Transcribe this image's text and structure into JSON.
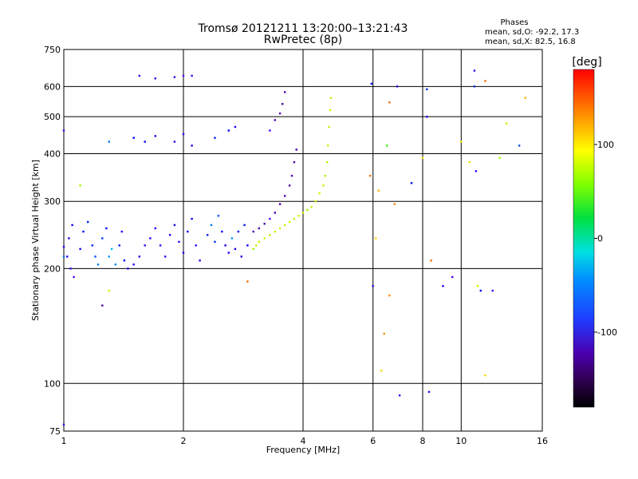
{
  "header": {
    "title_line1": "Tromsø 20121211 13:20:00–13:21:43",
    "title_line2": "RwPretec (8p)",
    "stats_title": "Phases",
    "stats_O": "mean, sd,O: -92.2, 17.3",
    "stats_X": "mean, sd,X:  82.5, 16.8"
  },
  "colorbar": {
    "unit": "[deg]",
    "min": -180,
    "max": 180,
    "ticks": [
      {
        "value": 100,
        "label": "100"
      },
      {
        "value": 0,
        "label": "0"
      },
      {
        "value": -100,
        "label": "-100"
      }
    ]
  },
  "chart_data": {
    "type": "scatter",
    "xlabel": "Frequency [MHz]",
    "ylabel": "Stationary phase Virtual Height [km]",
    "xscale": "log",
    "yscale": "log",
    "xlim": [
      1,
      16
    ],
    "ylim": [
      75,
      750
    ],
    "grid": true,
    "xticks": [
      {
        "value": 1,
        "label": "1"
      },
      {
        "value": 2,
        "label": "2"
      },
      {
        "value": 4,
        "label": "4"
      },
      {
        "value": 6,
        "label": "6"
      },
      {
        "value": 8,
        "label": "8"
      },
      {
        "value": 10,
        "label": "10"
      },
      {
        "value": 16,
        "label": "16"
      }
    ],
    "yticks": [
      {
        "value": 75,
        "label": "75"
      },
      {
        "value": 100,
        "label": "100"
      },
      {
        "value": 200,
        "label": "200"
      },
      {
        "value": 300,
        "label": "300"
      },
      {
        "value": 400,
        "label": "400"
      },
      {
        "value": 500,
        "label": "500"
      },
      {
        "value": 600,
        "label": "600"
      },
      {
        "value": 750,
        "label": "750"
      }
    ],
    "points": [
      [
        1.0,
        228,
        -110
      ],
      [
        1.02,
        215,
        -100
      ],
      [
        1.03,
        240,
        -105
      ],
      [
        1.05,
        260,
        -95
      ],
      [
        1.04,
        200,
        -110
      ],
      [
        1.06,
        190,
        -115
      ],
      [
        1.0,
        460,
        -115
      ],
      [
        1.0,
        78,
        -110
      ],
      [
        1.1,
        225,
        -95
      ],
      [
        1.12,
        250,
        -90
      ],
      [
        1.15,
        265,
        -85
      ],
      [
        1.18,
        230,
        -80
      ],
      [
        1.2,
        215,
        -70
      ],
      [
        1.22,
        205,
        -60
      ],
      [
        1.25,
        240,
        -75
      ],
      [
        1.28,
        255,
        -90
      ],
      [
        1.3,
        215,
        -50
      ],
      [
        1.32,
        225,
        -40
      ],
      [
        1.35,
        205,
        -55
      ],
      [
        1.38,
        230,
        -85
      ],
      [
        1.4,
        250,
        -100
      ],
      [
        1.42,
        210,
        -95
      ],
      [
        1.45,
        200,
        -110
      ],
      [
        1.5,
        205,
        -105
      ],
      [
        1.55,
        215,
        -100
      ],
      [
        1.6,
        230,
        -110
      ],
      [
        1.65,
        240,
        -105
      ],
      [
        1.7,
        255,
        -100
      ],
      [
        1.75,
        230,
        -112
      ],
      [
        1.8,
        215,
        -108
      ],
      [
        1.85,
        245,
        -102
      ],
      [
        1.9,
        260,
        -98
      ],
      [
        1.95,
        235,
        -106
      ],
      [
        2.0,
        220,
        -100
      ],
      [
        2.05,
        250,
        -95
      ],
      [
        2.1,
        270,
        -90
      ],
      [
        2.15,
        230,
        -104
      ],
      [
        2.2,
        210,
        -108
      ],
      [
        2.3,
        245,
        -85
      ],
      [
        2.35,
        260,
        -60
      ],
      [
        2.4,
        235,
        -80
      ],
      [
        2.45,
        275,
        -70
      ],
      [
        2.5,
        250,
        -95
      ],
      [
        2.55,
        230,
        -100
      ],
      [
        2.6,
        220,
        -105
      ],
      [
        2.65,
        240,
        -50
      ],
      [
        2.7,
        225,
        -98
      ],
      [
        2.75,
        250,
        -92
      ],
      [
        2.8,
        215,
        -100
      ],
      [
        2.85,
        260,
        -88
      ],
      [
        2.9,
        230,
        -95
      ],
      [
        3.0,
        225,
        90
      ],
      [
        3.05,
        230,
        95
      ],
      [
        3.1,
        235,
        100
      ],
      [
        3.2,
        240,
        98
      ],
      [
        3.3,
        245,
        92
      ],
      [
        3.4,
        250,
        95
      ],
      [
        3.5,
        255,
        100
      ],
      [
        3.6,
        260,
        96
      ],
      [
        3.7,
        265,
        98
      ],
      [
        3.8,
        270,
        94
      ],
      [
        3.9,
        275,
        100
      ],
      [
        4.0,
        280,
        96
      ],
      [
        4.1,
        285,
        92
      ],
      [
        4.2,
        290,
        95
      ],
      [
        4.3,
        300,
        98
      ],
      [
        4.4,
        315,
        100
      ],
      [
        4.5,
        330,
        96
      ],
      [
        4.55,
        350,
        92
      ],
      [
        4.6,
        380,
        94
      ],
      [
        4.62,
        420,
        98
      ],
      [
        4.65,
        470,
        96
      ],
      [
        4.68,
        520,
        100
      ],
      [
        4.7,
        560,
        95
      ],
      [
        3.0,
        250,
        -120
      ],
      [
        3.1,
        255,
        -118
      ],
      [
        3.2,
        262,
        -122
      ],
      [
        3.3,
        270,
        -115
      ],
      [
        3.4,
        280,
        -120
      ],
      [
        3.5,
        295,
        -117
      ],
      [
        3.6,
        310,
        -121
      ],
      [
        3.7,
        330,
        -119
      ],
      [
        3.75,
        350,
        -116
      ],
      [
        3.8,
        380,
        -120
      ],
      [
        3.85,
        410,
        -118
      ],
      [
        3.3,
        460,
        -112
      ],
      [
        3.4,
        490,
        -118
      ],
      [
        3.5,
        510,
        -120
      ],
      [
        3.55,
        540,
        -116
      ],
      [
        3.6,
        580,
        -122
      ],
      [
        1.5,
        440,
        -90
      ],
      [
        1.6,
        430,
        -95
      ],
      [
        1.7,
        445,
        -100
      ],
      [
        1.9,
        430,
        -105
      ],
      [
        2.0,
        450,
        -108
      ],
      [
        2.1,
        420,
        -100
      ],
      [
        2.4,
        440,
        -85
      ],
      [
        2.6,
        460,
        -95
      ],
      [
        2.7,
        470,
        -100
      ],
      [
        1.3,
        430,
        -60
      ],
      [
        1.55,
        640,
        -112
      ],
      [
        1.7,
        630,
        -108
      ],
      [
        1.9,
        635,
        -110
      ],
      [
        2.0,
        640,
        -115
      ],
      [
        2.1,
        640,
        -112
      ],
      [
        1.0,
        215,
        -60
      ],
      [
        1.1,
        330,
        90
      ],
      [
        1.3,
        175,
        95
      ],
      [
        1.25,
        160,
        -120
      ],
      [
        2.9,
        185,
        150
      ],
      [
        5.9,
        350,
        150
      ],
      [
        5.95,
        610,
        -95
      ],
      [
        6.0,
        180,
        -110
      ],
      [
        6.1,
        240,
        120
      ],
      [
        6.2,
        320,
        130
      ],
      [
        6.3,
        108,
        120
      ],
      [
        6.4,
        135,
        140
      ],
      [
        6.5,
        420,
        60
      ],
      [
        6.6,
        545,
        150
      ],
      [
        6.6,
        170,
        140
      ],
      [
        6.8,
        295,
        140
      ],
      [
        6.9,
        600,
        -105
      ],
      [
        7.0,
        93,
        -110
      ],
      [
        7.5,
        335,
        -90
      ],
      [
        8.0,
        390,
        110
      ],
      [
        8.2,
        590,
        -80
      ],
      [
        8.2,
        500,
        -100
      ],
      [
        8.3,
        95,
        -110
      ],
      [
        8.4,
        210,
        150
      ],
      [
        9.0,
        180,
        -100
      ],
      [
        9.5,
        190,
        -115
      ],
      [
        10.0,
        430,
        110
      ],
      [
        10.5,
        380,
        120
      ],
      [
        10.8,
        600,
        -80
      ],
      [
        10.8,
        660,
        -110
      ],
      [
        10.9,
        360,
        -105
      ],
      [
        11.0,
        180,
        100
      ],
      [
        11.2,
        175,
        -90
      ],
      [
        11.5,
        620,
        150
      ],
      [
        11.5,
        105,
        120
      ],
      [
        12.0,
        175,
        -110
      ],
      [
        12.5,
        390,
        90
      ],
      [
        13.0,
        480,
        100
      ],
      [
        14.0,
        420,
        -70
      ],
      [
        14.5,
        560,
        130
      ]
    ]
  }
}
